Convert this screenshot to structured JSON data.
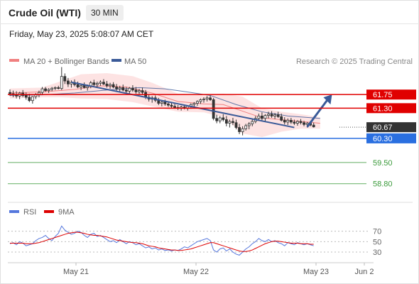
{
  "header": {
    "instrument": "Crude Oil (WTI)",
    "timeframe": "30 MIN"
  },
  "timestamp": "Friday, May 23, 2025 5:08:07 AM CET",
  "legend": {
    "ma20_bb": "MA 20 + Bollinger Bands",
    "ma50": "MA 50",
    "credit": "Research © 2025 Trading Central"
  },
  "colors": {
    "ma20": "#f08080",
    "bb_fill": "#fde0e0",
    "ma50": "#3a5a98",
    "trendline": "#3a5a98",
    "resistance": "#e00000",
    "support": "#2a6fe0",
    "target": "#3a9a3a",
    "current": "#333333",
    "rsi": "#5577dd",
    "rsi_ma": "#dd0000"
  },
  "chart_data": [
    {
      "type": "candlestick",
      "title": "Crude Oil (WTI) 30 MIN",
      "y_domain": [
        58.3,
        62.6
      ],
      "x_tick_labels": [
        "May 21",
        "May 22",
        "May 23",
        "Jun 2"
      ],
      "levels": [
        {
          "label": "61.75",
          "value": 61.75,
          "kind": "resistance"
        },
        {
          "label": "61.30",
          "value": 61.3,
          "kind": "resistance"
        },
        {
          "label": "60.67",
          "value": 60.67,
          "kind": "current"
        },
        {
          "label": "60.30",
          "value": 60.3,
          "kind": "support"
        },
        {
          "label": "59.50",
          "value": 59.5,
          "kind": "target"
        },
        {
          "label": "58.80",
          "value": 58.8,
          "kind": "target"
        }
      ],
      "candles": [
        [
          61.82,
          61.92,
          61.7,
          61.78
        ],
        [
          61.78,
          61.88,
          61.66,
          61.75
        ],
        [
          61.75,
          61.86,
          61.62,
          61.7
        ],
        [
          61.7,
          61.84,
          61.6,
          61.8
        ],
        [
          61.8,
          61.9,
          61.66,
          61.72
        ],
        [
          61.72,
          61.82,
          61.58,
          61.66
        ],
        [
          61.66,
          61.78,
          61.5,
          61.55
        ],
        [
          61.55,
          61.7,
          61.45,
          61.68
        ],
        [
          61.68,
          61.8,
          61.6,
          61.74
        ],
        [
          61.74,
          61.88,
          61.66,
          61.82
        ],
        [
          61.82,
          62.0,
          61.76,
          61.94
        ],
        [
          61.94,
          62.0,
          61.84,
          61.88
        ],
        [
          61.88,
          61.96,
          61.8,
          61.92
        ],
        [
          61.92,
          62.0,
          61.86,
          61.96
        ],
        [
          61.96,
          62.02,
          61.9,
          61.98
        ],
        [
          61.98,
          62.04,
          61.92,
          61.95
        ],
        [
          61.95,
          62.66,
          61.9,
          62.35
        ],
        [
          62.35,
          62.45,
          62.1,
          62.2
        ],
        [
          62.2,
          62.3,
          62.0,
          62.1
        ],
        [
          62.1,
          62.22,
          61.98,
          62.15
        ],
        [
          62.15,
          62.25,
          62.02,
          62.08
        ],
        [
          62.08,
          62.18,
          61.96,
          62.0
        ],
        [
          62.0,
          62.1,
          61.9,
          62.05
        ],
        [
          62.05,
          62.15,
          61.95,
          61.98
        ],
        [
          61.98,
          62.08,
          61.88,
          62.02
        ],
        [
          62.02,
          62.2,
          61.96,
          62.14
        ],
        [
          62.14,
          62.24,
          62.0,
          62.08
        ],
        [
          62.08,
          62.18,
          61.98,
          62.12
        ],
        [
          62.12,
          62.22,
          62.04,
          62.16
        ],
        [
          62.16,
          62.26,
          62.06,
          62.1
        ],
        [
          62.1,
          62.2,
          61.98,
          62.04
        ],
        [
          62.04,
          62.14,
          61.94,
          62.08
        ],
        [
          62.08,
          62.16,
          61.96,
          62.0
        ],
        [
          62.0,
          62.1,
          61.88,
          61.94
        ],
        [
          61.94,
          62.04,
          61.84,
          61.98
        ],
        [
          61.98,
          62.08,
          61.86,
          61.9
        ],
        [
          61.9,
          62.0,
          61.8,
          61.86
        ],
        [
          61.86,
          62.0,
          61.78,
          61.96
        ],
        [
          61.96,
          62.06,
          61.84,
          61.9
        ],
        [
          61.9,
          62.0,
          61.78,
          61.84
        ],
        [
          61.84,
          61.94,
          61.74,
          61.88
        ],
        [
          61.88,
          61.98,
          61.76,
          61.82
        ],
        [
          61.82,
          61.9,
          61.6,
          61.66
        ],
        [
          61.66,
          61.74,
          61.52,
          61.6
        ],
        [
          61.6,
          61.7,
          61.48,
          61.64
        ],
        [
          61.64,
          61.72,
          61.5,
          61.56
        ],
        [
          61.56,
          61.64,
          61.4,
          61.46
        ],
        [
          61.46,
          61.56,
          61.36,
          61.5
        ],
        [
          61.5,
          61.58,
          61.38,
          61.44
        ],
        [
          61.44,
          61.52,
          61.34,
          61.4
        ],
        [
          61.4,
          61.48,
          61.3,
          61.36
        ],
        [
          61.36,
          61.44,
          61.28,
          61.32
        ],
        [
          61.32,
          61.4,
          61.24,
          61.3
        ],
        [
          61.3,
          61.38,
          61.22,
          61.34
        ],
        [
          61.34,
          61.42,
          61.26,
          61.3
        ],
        [
          61.3,
          61.38,
          61.22,
          61.36
        ],
        [
          61.36,
          61.46,
          61.28,
          61.42
        ],
        [
          61.42,
          61.5,
          61.32,
          61.46
        ],
        [
          61.46,
          61.56,
          61.38,
          61.52
        ],
        [
          61.52,
          61.62,
          61.44,
          61.58
        ],
        [
          61.58,
          61.66,
          61.48,
          61.6
        ],
        [
          61.6,
          61.7,
          61.52,
          61.64
        ],
        [
          61.64,
          61.72,
          61.54,
          61.58
        ],
        [
          61.58,
          61.64,
          60.9,
          60.96
        ],
        [
          60.96,
          61.08,
          60.8,
          60.88
        ],
        [
          60.88,
          61.04,
          60.8,
          60.98
        ],
        [
          60.98,
          61.1,
          60.86,
          60.92
        ],
        [
          60.92,
          61.04,
          60.7,
          60.8
        ],
        [
          60.8,
          60.92,
          60.66,
          60.86
        ],
        [
          60.86,
          60.98,
          60.74,
          60.82
        ],
        [
          60.82,
          60.92,
          60.6,
          60.66
        ],
        [
          60.66,
          60.78,
          60.44,
          60.52
        ],
        [
          60.52,
          60.7,
          60.4,
          60.62
        ],
        [
          60.62,
          60.78,
          60.56,
          60.72
        ],
        [
          60.72,
          60.84,
          60.6,
          60.78
        ],
        [
          60.78,
          60.92,
          60.7,
          60.86
        ],
        [
          60.86,
          61.04,
          60.8,
          60.96
        ],
        [
          60.96,
          61.12,
          60.88,
          61.04
        ],
        [
          61.04,
          61.16,
          60.9,
          60.96
        ],
        [
          60.96,
          61.1,
          60.86,
          61.06
        ],
        [
          61.06,
          61.18,
          60.96,
          61.1
        ],
        [
          61.1,
          61.2,
          60.98,
          61.04
        ],
        [
          61.04,
          61.14,
          60.94,
          61.08
        ],
        [
          61.08,
          61.18,
          60.98,
          61.02
        ],
        [
          61.02,
          61.12,
          60.86,
          60.9
        ],
        [
          60.9,
          61.0,
          60.76,
          60.84
        ],
        [
          60.84,
          60.96,
          60.74,
          60.9
        ],
        [
          60.9,
          60.98,
          60.78,
          60.84
        ],
        [
          60.84,
          60.92,
          60.74,
          60.8
        ],
        [
          60.8,
          60.9,
          60.72,
          60.86
        ],
        [
          60.86,
          60.94,
          60.76,
          60.82
        ],
        [
          60.82,
          60.88,
          60.7,
          60.76
        ],
        [
          60.76,
          60.84,
          60.66,
          60.8
        ],
        [
          60.8,
          60.88,
          60.7,
          60.74
        ],
        [
          60.74,
          60.82,
          60.66,
          60.68
        ]
      ],
      "ma20": [
        [
          0,
          61.8
        ],
        [
          10,
          61.84
        ],
        [
          20,
          61.92
        ],
        [
          28,
          62.04
        ],
        [
          36,
          62.0
        ],
        [
          44,
          61.8
        ],
        [
          52,
          61.52
        ],
        [
          60,
          61.44
        ],
        [
          66,
          61.42
        ],
        [
          72,
          61.2
        ],
        [
          78,
          60.98
        ],
        [
          84,
          60.92
        ],
        [
          90,
          60.86
        ],
        [
          96,
          60.8
        ]
      ],
      "bb_upper": [
        [
          0,
          61.95
        ],
        [
          10,
          61.98
        ],
        [
          16,
          62.2
        ],
        [
          22,
          62.42
        ],
        [
          30,
          62.46
        ],
        [
          38,
          62.36
        ],
        [
          44,
          62.14
        ],
        [
          52,
          61.78
        ],
        [
          60,
          61.74
        ],
        [
          66,
          61.78
        ],
        [
          72,
          61.68
        ],
        [
          78,
          61.3
        ],
        [
          84,
          61.18
        ],
        [
          90,
          61.1
        ],
        [
          96,
          61.0
        ]
      ],
      "bb_lower": [
        [
          0,
          61.62
        ],
        [
          10,
          61.66
        ],
        [
          16,
          61.66
        ],
        [
          22,
          61.62
        ],
        [
          30,
          61.6
        ],
        [
          38,
          61.5
        ],
        [
          44,
          61.36
        ],
        [
          52,
          61.18
        ],
        [
          60,
          61.16
        ],
        [
          66,
          61.0
        ],
        [
          72,
          60.46
        ],
        [
          78,
          60.34
        ],
        [
          84,
          60.52
        ],
        [
          90,
          60.62
        ],
        [
          96,
          60.62
        ]
      ],
      "ma50": [
        [
          0,
          61.72
        ],
        [
          10,
          61.74
        ],
        [
          20,
          61.8
        ],
        [
          30,
          61.9
        ],
        [
          40,
          61.98
        ],
        [
          48,
          61.94
        ],
        [
          56,
          61.82
        ],
        [
          62,
          61.72
        ],
        [
          70,
          61.42
        ],
        [
          78,
          61.18
        ],
        [
          86,
          61.04
        ],
        [
          96,
          60.96
        ]
      ],
      "trendline": [
        [
          19,
          62.16
        ],
        [
          88,
          60.66
        ]
      ],
      "forecast_arrow": [
        [
          92,
          60.68
        ],
        [
          99,
          61.68
        ]
      ]
    },
    {
      "type": "line",
      "title": "RSI",
      "y_ticks": [
        70,
        50,
        30
      ],
      "y_domain": [
        15,
        90
      ],
      "series": [
        {
          "name": "RSI",
          "values": [
            46,
            48,
            44,
            50,
            47,
            42,
            44,
            46,
            52,
            56,
            58,
            62,
            56,
            52,
            60,
            66,
            80,
            72,
            68,
            64,
            66,
            70,
            68,
            62,
            58,
            64,
            66,
            60,
            62,
            58,
            54,
            50,
            52,
            48,
            54,
            50,
            46,
            50,
            48,
            44,
            46,
            42,
            38,
            40,
            36,
            38,
            34,
            36,
            33,
            34,
            32,
            34,
            33,
            36,
            40,
            38,
            42,
            46,
            50,
            52,
            54,
            56,
            52,
            34,
            30,
            36,
            38,
            32,
            36,
            30,
            26,
            24,
            30,
            36,
            40,
            46,
            50,
            56,
            52,
            50,
            54,
            50,
            52,
            48,
            46,
            42,
            48,
            46,
            44,
            48,
            46,
            44,
            46,
            44,
            42
          ]
        },
        {
          "name": "9MA",
          "values": [
            47,
            47,
            47,
            47,
            47,
            46,
            46,
            46,
            47,
            48,
            50,
            52,
            54,
            56,
            58,
            60,
            62,
            64,
            66,
            67,
            68,
            68,
            67,
            66,
            64,
            63,
            62,
            62,
            61,
            60,
            59,
            57,
            55,
            53,
            52,
            51,
            50,
            49,
            48,
            48,
            47,
            46,
            44,
            42,
            41,
            40,
            38,
            37,
            36,
            35,
            34,
            34,
            33,
            33,
            34,
            35,
            36,
            38,
            40,
            42,
            44,
            46,
            48,
            48,
            46,
            44,
            42,
            40,
            38,
            36,
            34,
            32,
            31,
            31,
            32,
            34,
            37,
            40,
            43,
            46,
            48,
            50,
            51,
            51,
            50,
            49,
            48,
            47,
            47,
            47,
            46,
            46,
            46,
            45,
            45
          ]
        }
      ]
    }
  ]
}
